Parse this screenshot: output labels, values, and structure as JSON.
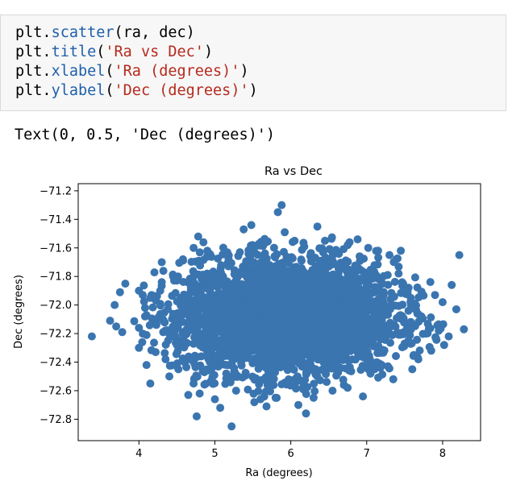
{
  "code_cell": {
    "lines": [
      [
        {
          "t": "plt.",
          "c": "plain"
        },
        {
          "t": "scatter",
          "c": "fn"
        },
        {
          "t": "(ra, dec)",
          "c": "plain"
        }
      ],
      [
        {
          "t": "plt.",
          "c": "plain"
        },
        {
          "t": "title",
          "c": "fn"
        },
        {
          "t": "(",
          "c": "plain"
        },
        {
          "t": "'Ra vs Dec'",
          "c": "str"
        },
        {
          "t": ")",
          "c": "plain"
        }
      ],
      [
        {
          "t": "plt.",
          "c": "plain"
        },
        {
          "t": "xlabel",
          "c": "fn"
        },
        {
          "t": "(",
          "c": "plain"
        },
        {
          "t": "'Ra (degrees)'",
          "c": "str"
        },
        {
          "t": ")",
          "c": "plain"
        }
      ],
      [
        {
          "t": "plt.",
          "c": "plain"
        },
        {
          "t": "ylabel",
          "c": "fn"
        },
        {
          "t": "(",
          "c": "plain"
        },
        {
          "t": "'Dec (degrees)'",
          "c": "str"
        },
        {
          "t": ")",
          "c": "plain"
        }
      ]
    ]
  },
  "output_text": "Text(0, 0.5, 'Dec (degrees)')",
  "chart_data": {
    "type": "scatter",
    "title": "Ra vs Dec",
    "xlabel": "Ra (degrees)",
    "ylabel": "Dec (degrees)",
    "xlim": [
      3.2,
      8.5
    ],
    "ylim": [
      -72.95,
      -71.15
    ],
    "xticks": [
      4,
      5,
      6,
      7,
      8
    ],
    "xtick_labels": [
      "4",
      "5",
      "6",
      "7",
      "8"
    ],
    "yticks": [
      -71.2,
      -71.4,
      -71.6,
      -71.8,
      -72.0,
      -72.2,
      -72.4,
      -72.6,
      -72.8
    ],
    "ytick_labels": [
      "−71.2",
      "−71.4",
      "−71.6",
      "−71.8",
      "−72.0",
      "−72.2",
      "−72.4",
      "−72.6",
      "−72.8"
    ],
    "grid": false,
    "marker_color": "#3a75b0",
    "points": [
      [
        3.38,
        -72.22
      ],
      [
        3.62,
        -72.11
      ],
      [
        3.68,
        -72.0
      ],
      [
        3.75,
        -71.91
      ],
      [
        3.78,
        -72.19
      ],
      [
        3.82,
        -71.85
      ],
      [
        3.7,
        -72.15
      ],
      [
        4.0,
        -71.9
      ],
      [
        4.05,
        -71.93
      ],
      [
        4.08,
        -72.02
      ],
      [
        4.0,
        -72.16
      ],
      [
        4.0,
        -72.3
      ],
      [
        4.1,
        -72.21
      ],
      [
        4.08,
        -72.08
      ],
      [
        4.15,
        -71.95
      ],
      [
        4.2,
        -72.12
      ],
      [
        4.22,
        -72.33
      ],
      [
        4.3,
        -71.84
      ],
      [
        4.32,
        -72.19
      ],
      [
        4.38,
        -72.03
      ],
      [
        4.45,
        -71.8
      ],
      [
        4.5,
        -72.28
      ],
      [
        4.1,
        -72.42
      ],
      [
        4.15,
        -72.55
      ],
      [
        4.35,
        -72.38
      ],
      [
        4.4,
        -72.5
      ],
      [
        4.28,
        -71.9
      ],
      [
        4.48,
        -72.12
      ],
      [
        4.58,
        -71.68
      ],
      [
        4.55,
        -71.95
      ],
      [
        4.6,
        -72.4
      ],
      [
        4.72,
        -71.6
      ],
      [
        4.78,
        -71.52
      ],
      [
        4.85,
        -71.56
      ],
      [
        4.9,
        -71.62
      ],
      [
        4.65,
        -72.63
      ],
      [
        4.72,
        -72.55
      ],
      [
        4.8,
        -72.62
      ],
      [
        4.76,
        -72.78
      ],
      [
        4.95,
        -72.53
      ],
      [
        5.0,
        -72.66
      ],
      [
        5.07,
        -72.72
      ],
      [
        5.22,
        -72.85
      ],
      [
        5.15,
        -72.48
      ],
      [
        5.28,
        -72.6
      ],
      [
        5.38,
        -71.47
      ],
      [
        5.48,
        -71.44
      ],
      [
        5.52,
        -72.68
      ],
      [
        5.6,
        -72.66
      ],
      [
        5.68,
        -72.71
      ],
      [
        5.8,
        -72.65
      ],
      [
        5.83,
        -71.35
      ],
      [
        5.88,
        -71.3
      ],
      [
        5.92,
        -71.49
      ],
      [
        6.05,
        -71.55
      ],
      [
        6.1,
        -72.7
      ],
      [
        6.2,
        -72.76
      ],
      [
        6.3,
        -72.65
      ],
      [
        6.35,
        -71.45
      ],
      [
        6.45,
        -71.55
      ],
      [
        6.55,
        -72.6
      ],
      [
        6.7,
        -72.56
      ],
      [
        6.75,
        -71.58
      ],
      [
        6.88,
        -71.54
      ],
      [
        6.95,
        -72.64
      ],
      [
        7.02,
        -71.6
      ],
      [
        7.05,
        -72.48
      ],
      [
        7.15,
        -71.62
      ],
      [
        7.18,
        -72.44
      ],
      [
        7.28,
        -72.43
      ],
      [
        7.3,
        -71.65
      ],
      [
        7.35,
        -72.52
      ],
      [
        7.42,
        -71.78
      ],
      [
        7.48,
        -71.85
      ],
      [
        7.55,
        -72.25
      ],
      [
        7.58,
        -71.95
      ],
      [
        7.62,
        -72.35
      ],
      [
        7.68,
        -72.38
      ],
      [
        7.72,
        -72.08
      ],
      [
        7.78,
        -72.2
      ],
      [
        7.85,
        -72.32
      ],
      [
        7.9,
        -71.93
      ],
      [
        7.95,
        -72.18
      ],
      [
        8.0,
        -71.98
      ],
      [
        8.02,
        -72.28
      ],
      [
        8.08,
        -72.22
      ],
      [
        8.12,
        -71.86
      ],
      [
        8.18,
        -72.03
      ],
      [
        8.28,
        -72.17
      ],
      [
        8.22,
        -71.65
      ],
      [
        7.45,
        -71.62
      ],
      [
        7.6,
        -72.45
      ],
      [
        4.9,
        -71.78
      ],
      [
        4.3,
        -71.7
      ],
      [
        4.45,
        -72.22
      ],
      [
        4.55,
        -72.1
      ]
    ],
    "cluster": {
      "center": [
        5.95,
        -72.08
      ],
      "sx": 0.72,
      "sy": 0.2,
      "n": 3400
    }
  }
}
